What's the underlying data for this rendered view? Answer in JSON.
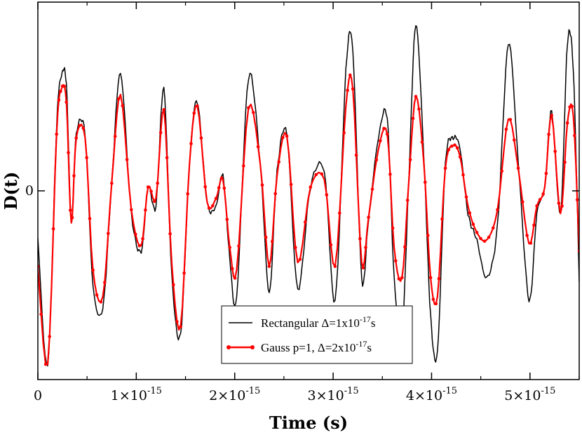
{
  "chart_data": {
    "type": "line",
    "title": "",
    "xlabel": "Time (s)",
    "ylabel": "D(t)",
    "xlim": [
      0,
      5.5e-15
    ],
    "ylim": [
      -1.0,
      1.0
    ],
    "x_ticks": [
      {
        "value": 0,
        "mantissa": "0",
        "exp": ""
      },
      {
        "value": 1e-15,
        "mantissa": "1×10",
        "exp": "-15"
      },
      {
        "value": 2e-15,
        "mantissa": "2×10",
        "exp": "-15"
      },
      {
        "value": 3e-15,
        "mantissa": "3×10",
        "exp": "-15"
      },
      {
        "value": 4e-15,
        "mantissa": "4×10",
        "exp": "-15"
      },
      {
        "value": 5e-15,
        "mantissa": "5×10",
        "exp": "-15"
      }
    ],
    "y_ticks": [
      {
        "value": 0,
        "label": "0"
      }
    ],
    "legend_position": "bottom-center",
    "series": [
      {
        "name": "rectangular",
        "legend_parts": [
          "Rectangular Δ=1x10",
          "-17",
          "s"
        ],
        "color": "#000000",
        "markers": false,
        "x": [
          0,
          0.1,
          0.19,
          0.24,
          0.29,
          0.34,
          0.39,
          0.48,
          0.56,
          0.66,
          0.75,
          0.84,
          0.95,
          1.05,
          1.12,
          1.2,
          1.28,
          1.36,
          1.45,
          1.54,
          1.62,
          1.72,
          1.81,
          1.88,
          1.95,
          2.02,
          2.14,
          2.26,
          2.35,
          2.43,
          2.53,
          2.64,
          2.77,
          2.91,
          3.02,
          3.13,
          3.2,
          3.29,
          3.36,
          3.46,
          3.55,
          3.62,
          3.7,
          3.77,
          3.84,
          3.92,
          3.99,
          4.06,
          4.14,
          4.22,
          4.29,
          4.37,
          4.46,
          4.56,
          4.67,
          4.78,
          4.88,
          4.99,
          5.07,
          5.15,
          5.22,
          5.31,
          5.38,
          5.44,
          5.5
        ],
        "y": [
          -0.25,
          -0.92,
          0.34,
          0.61,
          0.56,
          -0.16,
          0.3,
          0.3,
          -0.5,
          -0.62,
          0.04,
          0.62,
          -0.12,
          -0.32,
          0.02,
          -0.08,
          0.54,
          -0.44,
          -0.76,
          0.14,
          0.47,
          -0.06,
          -0.08,
          0.08,
          -0.36,
          -0.56,
          0.6,
          0.14,
          -0.54,
          0.1,
          0.3,
          -0.52,
          0.02,
          0.1,
          -0.58,
          0.64,
          0.74,
          -0.46,
          -0.15,
          0.28,
          0.38,
          -0.46,
          -0.74,
          0.08,
          0.88,
          0.2,
          -0.66,
          -0.85,
          0.14,
          0.28,
          0.22,
          -0.12,
          -0.26,
          -0.46,
          -0.18,
          0.78,
          0.16,
          -0.58,
          -0.12,
          0.02,
          0.42,
          -0.12,
          0.78,
          0.64,
          -0.48
        ]
      },
      {
        "name": "gauss",
        "legend_parts": [
          "Gauss  p=1, Δ=2x10",
          "-17",
          "s"
        ],
        "color": "#ff0000",
        "markers": true,
        "x": [
          0,
          0.1,
          0.19,
          0.24,
          0.29,
          0.34,
          0.39,
          0.48,
          0.56,
          0.66,
          0.75,
          0.84,
          0.95,
          1.05,
          1.12,
          1.2,
          1.28,
          1.36,
          1.45,
          1.54,
          1.62,
          1.72,
          1.81,
          1.88,
          1.95,
          2.02,
          2.14,
          2.26,
          2.35,
          2.43,
          2.53,
          2.64,
          2.77,
          2.91,
          3.02,
          3.13,
          3.2,
          3.29,
          3.36,
          3.46,
          3.55,
          3.62,
          3.7,
          3.77,
          3.84,
          3.92,
          3.99,
          4.06,
          4.14,
          4.22,
          4.29,
          4.37,
          4.46,
          4.56,
          4.67,
          4.78,
          4.88,
          4.99,
          5.07,
          5.15,
          5.22,
          5.31,
          5.38,
          5.44,
          5.5
        ],
        "y": [
          -0.4,
          -0.92,
          0.3,
          0.54,
          0.47,
          -0.17,
          0.28,
          0.28,
          -0.42,
          -0.56,
          0.04,
          0.51,
          -0.1,
          -0.29,
          0.02,
          -0.04,
          0.43,
          -0.38,
          -0.72,
          0.14,
          0.45,
          -0.06,
          -0.04,
          0.06,
          -0.3,
          -0.42,
          0.44,
          0.14,
          -0.4,
          0.08,
          0.29,
          -0.38,
          0.02,
          0.06,
          -0.4,
          0.45,
          0.54,
          -0.38,
          -0.14,
          0.22,
          0.3,
          -0.3,
          -0.46,
          0.06,
          0.5,
          0.16,
          -0.46,
          -0.56,
          0.12,
          0.24,
          0.18,
          -0.08,
          -0.22,
          -0.26,
          -0.1,
          0.38,
          0.12,
          -0.28,
          -0.08,
          0.02,
          0.4,
          -0.12,
          0.36,
          0.4,
          -0.32
        ]
      }
    ]
  }
}
